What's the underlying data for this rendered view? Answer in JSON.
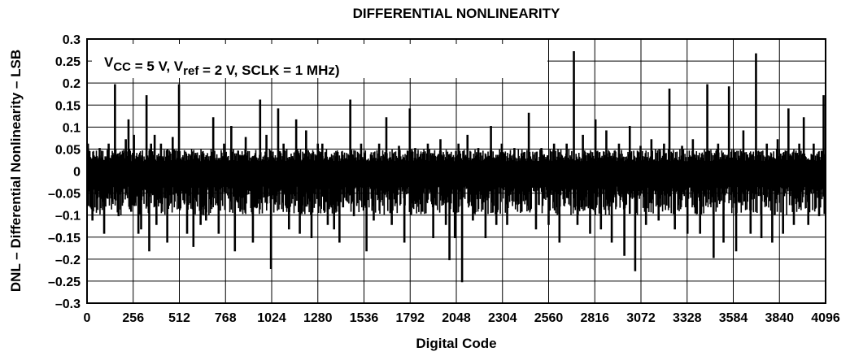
{
  "chart_data": {
    "type": "line",
    "title": "DIFFERENTIAL NONLINEARITY",
    "xlabel": "Digital Code",
    "ylabel": "DNL – Differential Nonlinearity – LSB",
    "annotation": {
      "parts": [
        {
          "text": "V",
          "sub": false
        },
        {
          "text": "CC",
          "sub": true
        },
        {
          "text": " = 5 V, V",
          "sub": false
        },
        {
          "text": "ref",
          "sub": true
        },
        {
          "text": " = 2 V, SCLK = 1 MHz)",
          "sub": false
        }
      ]
    },
    "xlim": [
      0,
      4096
    ],
    "ylim": [
      -0.3,
      0.3
    ],
    "x_ticks": [
      0,
      256,
      512,
      768,
      1024,
      1280,
      1536,
      1792,
      2048,
      2304,
      2560,
      2816,
      3072,
      3328,
      3584,
      3840,
      4096
    ],
    "x_tick_labels": [
      "0",
      "256",
      "512",
      "768",
      "1024",
      "1280",
      "1536",
      "1792",
      "2048",
      "2304",
      "2560",
      "2816",
      "3072",
      "3328",
      "3584",
      "3840",
      "4096"
    ],
    "y_ticks": [
      0.3,
      0.25,
      0.2,
      0.15,
      0.1,
      0.05,
      0,
      -0.05,
      -0.1,
      -0.15,
      -0.2,
      -0.25,
      -0.3
    ],
    "y_tick_labels": [
      "0.3",
      "0.25",
      "0.2",
      "0.15",
      "0.1",
      "0.05",
      "0",
      "–0.05",
      "–0.1",
      "–0.15",
      "–0.2",
      "–0.25",
      "–0.3"
    ],
    "grid": true,
    "line_color": "#000000",
    "series": [
      {
        "name": "",
        "noise_band": [
          -0.1,
          0.05
        ],
        "spikes": [
          {
            "x": 5,
            "y": 0.06
          },
          {
            "x": 30,
            "y": -0.11
          },
          {
            "x": 70,
            "y": 0.05
          },
          {
            "x": 95,
            "y": -0.14
          },
          {
            "x": 120,
            "y": 0.06
          },
          {
            "x": 155,
            "y": 0.195
          },
          {
            "x": 175,
            "y": -0.1
          },
          {
            "x": 215,
            "y": 0.07
          },
          {
            "x": 230,
            "y": 0.115
          },
          {
            "x": 245,
            "y": -0.09
          },
          {
            "x": 260,
            "y": 0.08
          },
          {
            "x": 285,
            "y": -0.14
          },
          {
            "x": 300,
            "y": -0.13
          },
          {
            "x": 330,
            "y": 0.17
          },
          {
            "x": 345,
            "y": -0.18
          },
          {
            "x": 355,
            "y": 0.06
          },
          {
            "x": 375,
            "y": 0.08
          },
          {
            "x": 385,
            "y": -0.12
          },
          {
            "x": 410,
            "y": 0.06
          },
          {
            "x": 445,
            "y": -0.16
          },
          {
            "x": 475,
            "y": 0.075
          },
          {
            "x": 510,
            "y": 0.195
          },
          {
            "x": 540,
            "y": -0.07
          },
          {
            "x": 555,
            "y": -0.14
          },
          {
            "x": 590,
            "y": -0.17
          },
          {
            "x": 630,
            "y": -0.12
          },
          {
            "x": 660,
            "y": -0.11
          },
          {
            "x": 700,
            "y": 0.12
          },
          {
            "x": 730,
            "y": -0.14
          },
          {
            "x": 760,
            "y": 0.06
          },
          {
            "x": 800,
            "y": 0.1
          },
          {
            "x": 820,
            "y": -0.18
          },
          {
            "x": 850,
            "y": -0.09
          },
          {
            "x": 880,
            "y": 0.075
          },
          {
            "x": 920,
            "y": -0.16
          },
          {
            "x": 960,
            "y": 0.16
          },
          {
            "x": 995,
            "y": 0.08
          },
          {
            "x": 1020,
            "y": -0.22
          },
          {
            "x": 1060,
            "y": 0.14
          },
          {
            "x": 1090,
            "y": 0.06
          },
          {
            "x": 1120,
            "y": -0.13
          },
          {
            "x": 1160,
            "y": 0.115
          },
          {
            "x": 1180,
            "y": -0.14
          },
          {
            "x": 1215,
            "y": 0.09
          },
          {
            "x": 1245,
            "y": -0.15
          },
          {
            "x": 1280,
            "y": 0.06
          },
          {
            "x": 1305,
            "y": 0.06
          },
          {
            "x": 1335,
            "y": -0.12
          },
          {
            "x": 1370,
            "y": -0.13
          },
          {
            "x": 1400,
            "y": -0.16
          },
          {
            "x": 1420,
            "y": -0.08
          },
          {
            "x": 1460,
            "y": 0.16
          },
          {
            "x": 1480,
            "y": -0.1
          },
          {
            "x": 1520,
            "y": 0.06
          },
          {
            "x": 1550,
            "y": -0.18
          },
          {
            "x": 1590,
            "y": -0.11
          },
          {
            "x": 1620,
            "y": 0.06
          },
          {
            "x": 1660,
            "y": 0.12
          },
          {
            "x": 1690,
            "y": -0.12
          },
          {
            "x": 1730,
            "y": 0.055
          },
          {
            "x": 1760,
            "y": -0.16
          },
          {
            "x": 1790,
            "y": 0.14
          },
          {
            "x": 1820,
            "y": 0.05
          },
          {
            "x": 1860,
            "y": -0.09
          },
          {
            "x": 1890,
            "y": 0.06
          },
          {
            "x": 1920,
            "y": -0.15
          },
          {
            "x": 1960,
            "y": 0.07
          },
          {
            "x": 1990,
            "y": -0.12
          },
          {
            "x": 2010,
            "y": -0.2
          },
          {
            "x": 2040,
            "y": -0.15
          },
          {
            "x": 2060,
            "y": 0.06
          },
          {
            "x": 2080,
            "y": -0.25
          },
          {
            "x": 2110,
            "y": 0.08
          },
          {
            "x": 2140,
            "y": -0.11
          },
          {
            "x": 2170,
            "y": 0.05
          },
          {
            "x": 2210,
            "y": -0.15
          },
          {
            "x": 2240,
            "y": 0.1
          },
          {
            "x": 2270,
            "y": -0.12
          },
          {
            "x": 2300,
            "y": 0.06
          },
          {
            "x": 2330,
            "y": -0.12
          },
          {
            "x": 2370,
            "y": 0.05
          },
          {
            "x": 2410,
            "y": -0.09
          },
          {
            "x": 2450,
            "y": 0.13
          },
          {
            "x": 2490,
            "y": -0.13
          },
          {
            "x": 2520,
            "y": 0.05
          },
          {
            "x": 2560,
            "y": -0.12
          },
          {
            "x": 2590,
            "y": 0.06
          },
          {
            "x": 2620,
            "y": -0.16
          },
          {
            "x": 2660,
            "y": 0.06
          },
          {
            "x": 2700,
            "y": 0.27
          },
          {
            "x": 2720,
            "y": -0.12
          },
          {
            "x": 2750,
            "y": 0.08
          },
          {
            "x": 2790,
            "y": -0.14
          },
          {
            "x": 2820,
            "y": 0.115
          },
          {
            "x": 2850,
            "y": -0.13
          },
          {
            "x": 2880,
            "y": 0.09
          },
          {
            "x": 2910,
            "y": -0.16
          },
          {
            "x": 2950,
            "y": 0.06
          },
          {
            "x": 2980,
            "y": -0.19
          },
          {
            "x": 3010,
            "y": 0.1
          },
          {
            "x": 3040,
            "y": -0.225
          },
          {
            "x": 3070,
            "y": 0.055
          },
          {
            "x": 3100,
            "y": -0.12
          },
          {
            "x": 3130,
            "y": 0.07
          },
          {
            "x": 3170,
            "y": -0.11
          },
          {
            "x": 3200,
            "y": 0.06
          },
          {
            "x": 3230,
            "y": 0.185
          },
          {
            "x": 3260,
            "y": -0.13
          },
          {
            "x": 3300,
            "y": 0.055
          },
          {
            "x": 3330,
            "y": -0.14
          },
          {
            "x": 3360,
            "y": 0.07
          },
          {
            "x": 3400,
            "y": -0.14
          },
          {
            "x": 3440,
            "y": 0.195
          },
          {
            "x": 3475,
            "y": -0.195
          },
          {
            "x": 3500,
            "y": 0.06
          },
          {
            "x": 3530,
            "y": -0.16
          },
          {
            "x": 3560,
            "y": 0.19
          },
          {
            "x": 3600,
            "y": -0.18
          },
          {
            "x": 3640,
            "y": 0.09
          },
          {
            "x": 3680,
            "y": -0.14
          },
          {
            "x": 3710,
            "y": 0.265
          },
          {
            "x": 3740,
            "y": -0.15
          },
          {
            "x": 3770,
            "y": 0.06
          },
          {
            "x": 3800,
            "y": -0.16
          },
          {
            "x": 3830,
            "y": 0.07
          },
          {
            "x": 3860,
            "y": -0.14
          },
          {
            "x": 3890,
            "y": 0.14
          },
          {
            "x": 3920,
            "y": -0.12
          },
          {
            "x": 3950,
            "y": 0.06
          },
          {
            "x": 3975,
            "y": 0.12
          },
          {
            "x": 4000,
            "y": -0.12
          },
          {
            "x": 4030,
            "y": 0.06
          },
          {
            "x": 4060,
            "y": -0.1
          },
          {
            "x": 4085,
            "y": 0.17
          }
        ]
      }
    ]
  }
}
